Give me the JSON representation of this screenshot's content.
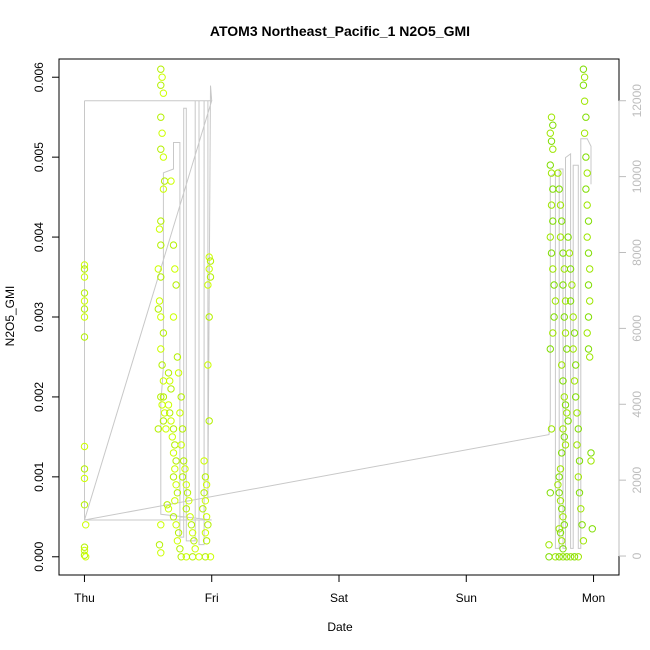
{
  "chart_data": {
    "type": "scatter",
    "title": "ATOM3 Northeast_Pacific_1 N2O5_GMI",
    "xlabel": "Date",
    "ylabel": "N2O5_GMI",
    "x_ticks": [
      "Thu",
      "Fri",
      "Sat",
      "Sun",
      "Mon"
    ],
    "x_tick_values": [
      0,
      1,
      2,
      3,
      4
    ],
    "xlim": [
      -0.2,
      4.2
    ],
    "ylim": [
      -0.000228,
      0.006228
    ],
    "y_ticks": [
      0.0,
      0.001,
      0.002,
      0.003,
      0.004,
      0.005,
      0.006
    ],
    "y_tick_labels": [
      "0.000",
      "0.001",
      "0.002",
      "0.003",
      "0.004",
      "0.005",
      "0.006"
    ],
    "y2_ticks": [
      0,
      2000,
      4000,
      6000,
      8000,
      10000,
      12000
    ],
    "y2_tick_labels": [
      "0",
      "2000",
      "4000",
      "6000",
      "8000",
      "10000",
      "12000"
    ],
    "y2lim": [
      -500,
      13100
    ],
    "grid": false,
    "marker_colors": [
      "#ccff00",
      "#b4f000",
      "#9ee600",
      "#7fdd00"
    ],
    "altitude_color": "#c8c8c8",
    "series": [
      {
        "values": [
          [
            0.0,
            0.00365
          ],
          [
            0.0,
            0.0036
          ],
          [
            0.0,
            0.0035
          ],
          [
            0.0,
            0.0033
          ],
          [
            0.0,
            0.0032
          ],
          [
            0.0,
            0.0031
          ],
          [
            0.0,
            0.003
          ],
          [
            0.0,
            0.00275
          ],
          [
            0.0,
            0.00138
          ],
          [
            0.0,
            0.0011
          ],
          [
            0.0,
            0.00098
          ],
          [
            0.0,
            0.00065
          ],
          [
            0.01,
            0.0004
          ],
          [
            0.0,
            0.00012
          ],
          [
            0.0,
            8e-05
          ],
          [
            0.0,
            2e-05
          ],
          [
            0.01,
            0.0
          ],
          [
            0.6,
            0.0061
          ],
          [
            0.61,
            0.006
          ],
          [
            0.6,
            0.0059
          ],
          [
            0.62,
            0.0058
          ],
          [
            0.6,
            0.0055
          ],
          [
            0.61,
            0.0053
          ],
          [
            0.6,
            0.0051
          ],
          [
            0.62,
            0.005
          ],
          [
            0.63,
            0.0047
          ],
          [
            0.62,
            0.0046
          ],
          [
            0.6,
            0.0042
          ],
          [
            0.59,
            0.0041
          ],
          [
            0.6,
            0.0039
          ],
          [
            0.58,
            0.0036
          ],
          [
            0.6,
            0.0035
          ],
          [
            0.59,
            0.0032
          ],
          [
            0.58,
            0.0031
          ],
          [
            0.6,
            0.003
          ],
          [
            0.62,
            0.0028
          ],
          [
            0.6,
            0.0026
          ],
          [
            0.61,
            0.0024
          ],
          [
            0.62,
            0.0022
          ],
          [
            0.6,
            0.002
          ],
          [
            0.61,
            0.0019
          ],
          [
            0.62,
            0.002
          ],
          [
            0.63,
            0.0018
          ],
          [
            0.62,
            0.0017
          ],
          [
            0.64,
            0.0016
          ],
          [
            0.58,
            0.0016
          ],
          [
            0.6,
            0.0004
          ],
          [
            0.59,
            0.00015
          ],
          [
            0.6,
            5e-05
          ],
          [
            0.66,
            0.0023
          ],
          [
            0.67,
            0.0022
          ],
          [
            0.68,
            0.0021
          ],
          [
            0.66,
            0.0019
          ],
          [
            0.67,
            0.0018
          ],
          [
            0.68,
            0.0017
          ],
          [
            0.7,
            0.0016
          ],
          [
            0.69,
            0.0015
          ],
          [
            0.71,
            0.0014
          ],
          [
            0.7,
            0.0013
          ],
          [
            0.72,
            0.0012
          ],
          [
            0.71,
            0.0011
          ],
          [
            0.7,
            0.001
          ],
          [
            0.72,
            0.0009
          ],
          [
            0.73,
            0.0008
          ],
          [
            0.71,
            0.0007
          ],
          [
            0.65,
            0.00065
          ],
          [
            0.66,
            0.0006
          ],
          [
            0.7,
            0.0005
          ],
          [
            0.72,
            0.0004
          ],
          [
            0.74,
            0.0003
          ],
          [
            0.73,
            0.0002
          ],
          [
            0.75,
            0.0001
          ],
          [
            0.68,
            0.0047
          ],
          [
            0.7,
            0.0039
          ],
          [
            0.71,
            0.0036
          ],
          [
            0.72,
            0.0034
          ],
          [
            0.7,
            0.003
          ],
          [
            0.73,
            0.0025
          ],
          [
            0.74,
            0.0023
          ],
          [
            0.76,
            0.002
          ],
          [
            0.75,
            0.0018
          ],
          [
            0.77,
            0.0016
          ],
          [
            0.76,
            0.0014
          ],
          [
            0.78,
            0.0012
          ],
          [
            0.79,
            0.0011
          ],
          [
            0.77,
            0.001
          ],
          [
            0.8,
            0.0009
          ],
          [
            0.81,
            0.0008
          ],
          [
            0.82,
            0.0007
          ],
          [
            0.8,
            0.0006
          ],
          [
            0.83,
            0.0005
          ],
          [
            0.84,
            0.0004
          ],
          [
            0.85,
            0.0003
          ],
          [
            0.86,
            0.0002
          ],
          [
            0.87,
            0.0001
          ],
          [
            0.76,
            0.0
          ],
          [
            0.8,
            0.0
          ],
          [
            0.85,
            0.0
          ],
          [
            0.9,
            0.0
          ],
          [
            0.95,
            0.0
          ],
          [
            0.94,
            0.0012
          ],
          [
            0.95,
            0.001
          ],
          [
            0.96,
            0.0009
          ],
          [
            0.94,
            0.0008
          ],
          [
            0.95,
            0.0007
          ],
          [
            0.93,
            0.0006
          ],
          [
            0.96,
            0.0005
          ],
          [
            0.97,
            0.0004
          ],
          [
            0.95,
            0.0003
          ],
          [
            0.96,
            0.0002
          ],
          [
            0.98,
            0.00375
          ],
          [
            0.99,
            0.0037
          ],
          [
            0.98,
            0.0036
          ],
          [
            0.99,
            0.0035
          ],
          [
            0.97,
            0.0034
          ],
          [
            0.98,
            0.003
          ],
          [
            0.97,
            0.0024
          ],
          [
            0.98,
            0.0017
          ],
          [
            0.99,
            0.0
          ]
        ]
      },
      {
        "values": [
          [
            3.67,
            0.0055
          ],
          [
            3.68,
            0.0054
          ],
          [
            3.66,
            0.0053
          ],
          [
            3.67,
            0.0052
          ],
          [
            3.68,
            0.0051
          ],
          [
            3.66,
            0.0049
          ],
          [
            3.67,
            0.0048
          ],
          [
            3.68,
            0.0046
          ],
          [
            3.67,
            0.0044
          ],
          [
            3.68,
            0.0042
          ],
          [
            3.66,
            0.004
          ],
          [
            3.67,
            0.0038
          ],
          [
            3.68,
            0.0036
          ],
          [
            3.69,
            0.0034
          ],
          [
            3.7,
            0.0032
          ],
          [
            3.69,
            0.003
          ],
          [
            3.68,
            0.0028
          ],
          [
            3.66,
            0.0026
          ],
          [
            3.67,
            0.0016
          ],
          [
            3.66,
            0.0008
          ],
          [
            3.65,
            0.00015
          ],
          [
            3.65,
            0.0
          ],
          [
            3.72,
            0.0048
          ],
          [
            3.73,
            0.0046
          ],
          [
            3.74,
            0.0044
          ],
          [
            3.75,
            0.0042
          ],
          [
            3.74,
            0.004
          ],
          [
            3.76,
            0.0038
          ],
          [
            3.77,
            0.0036
          ],
          [
            3.76,
            0.0034
          ],
          [
            3.78,
            0.0032
          ],
          [
            3.77,
            0.003
          ],
          [
            3.78,
            0.0028
          ],
          [
            3.79,
            0.0026
          ],
          [
            3.75,
            0.0024
          ],
          [
            3.76,
            0.0022
          ],
          [
            3.77,
            0.002
          ],
          [
            3.78,
            0.0019
          ],
          [
            3.79,
            0.0018
          ],
          [
            3.8,
            0.0017
          ],
          [
            3.76,
            0.0016
          ],
          [
            3.77,
            0.0015
          ],
          [
            3.78,
            0.0014
          ],
          [
            3.75,
            0.0013
          ],
          [
            3.74,
            0.0011
          ],
          [
            3.73,
            0.001
          ],
          [
            3.72,
            0.0009
          ],
          [
            3.73,
            0.0008
          ],
          [
            3.74,
            0.0007
          ],
          [
            3.75,
            0.0006
          ],
          [
            3.76,
            0.0005
          ],
          [
            3.77,
            0.0004
          ],
          [
            3.73,
            0.00035
          ],
          [
            3.74,
            0.0003
          ],
          [
            3.75,
            0.0002
          ],
          [
            3.76,
            0.0001
          ],
          [
            3.7,
            0.0
          ],
          [
            3.73,
            0.0
          ],
          [
            3.76,
            0.0
          ],
          [
            3.79,
            0.0
          ],
          [
            3.82,
            0.0
          ],
          [
            3.85,
            0.0
          ],
          [
            3.88,
            0.0
          ],
          [
            3.8,
            0.004
          ],
          [
            3.81,
            0.0038
          ],
          [
            3.82,
            0.0036
          ],
          [
            3.83,
            0.0034
          ],
          [
            3.82,
            0.0032
          ],
          [
            3.84,
            0.003
          ],
          [
            3.85,
            0.0028
          ],
          [
            3.84,
            0.0026
          ],
          [
            3.86,
            0.0024
          ],
          [
            3.85,
            0.0022
          ],
          [
            3.86,
            0.002
          ],
          [
            3.87,
            0.0018
          ],
          [
            3.88,
            0.0016
          ],
          [
            3.87,
            0.0014
          ],
          [
            3.89,
            0.0012
          ],
          [
            3.88,
            0.001
          ],
          [
            3.89,
            0.0008
          ],
          [
            3.9,
            0.0006
          ],
          [
            3.91,
            0.0004
          ],
          [
            3.92,
            0.0002
          ],
          [
            3.92,
            0.0061
          ],
          [
            3.93,
            0.006
          ],
          [
            3.92,
            0.0059
          ],
          [
            3.93,
            0.0057
          ],
          [
            3.94,
            0.0055
          ],
          [
            3.93,
            0.0053
          ],
          [
            3.94,
            0.005
          ],
          [
            3.95,
            0.0048
          ],
          [
            3.94,
            0.0046
          ],
          [
            3.95,
            0.0044
          ],
          [
            3.96,
            0.0042
          ],
          [
            3.95,
            0.004
          ],
          [
            3.96,
            0.0038
          ],
          [
            3.97,
            0.0036
          ],
          [
            3.96,
            0.0034
          ],
          [
            3.97,
            0.0032
          ],
          [
            3.96,
            0.003
          ],
          [
            3.95,
            0.0028
          ],
          [
            3.96,
            0.0026
          ],
          [
            3.97,
            0.0025
          ],
          [
            3.98,
            0.0013
          ],
          [
            3.98,
            0.0012
          ],
          [
            3.99,
            0.00035
          ]
        ]
      }
    ],
    "altitude_series": {
      "values": [
        [
          0.0,
          12000
        ],
        [
          0.0,
          950
        ],
        [
          1.0,
          950
        ],
        [
          0.6,
          1100
        ],
        [
          0.6,
          4000
        ],
        [
          0.62,
          5000
        ],
        [
          0.62,
          10100
        ],
        [
          0.7,
          10200
        ],
        [
          0.7,
          10900
        ],
        [
          0.75,
          10900
        ],
        [
          0.75,
          500
        ],
        [
          0.78,
          500
        ],
        [
          0.78,
          11800
        ],
        [
          0.8,
          11800
        ],
        [
          0.8,
          400
        ],
        [
          0.87,
          400
        ],
        [
          0.87,
          12000
        ],
        [
          0.9,
          12000
        ],
        [
          0.9,
          300
        ],
        [
          0.94,
          300
        ],
        [
          0.94,
          12000
        ],
        [
          0.97,
          12000
        ],
        [
          0.97,
          1500
        ],
        [
          0.99,
          12400
        ],
        [
          1.0,
          12000
        ],
        [
          0.0,
          12000
        ],
        [
          1.0,
          12000
        ],
        [
          0.0,
          950
        ],
        [
          3.65,
          3200
        ],
        [
          3.66,
          3600
        ],
        [
          3.66,
          10000
        ],
        [
          3.7,
          10100
        ],
        [
          3.7,
          200
        ],
        [
          3.73,
          200
        ],
        [
          3.73,
          10200
        ],
        [
          3.76,
          10200
        ],
        [
          3.76,
          200
        ],
        [
          3.78,
          200
        ],
        [
          3.78,
          10500
        ],
        [
          3.82,
          10600
        ],
        [
          3.82,
          200
        ],
        [
          3.84,
          200
        ],
        [
          3.84,
          10300
        ],
        [
          3.88,
          10300
        ],
        [
          3.88,
          200
        ],
        [
          3.9,
          200
        ],
        [
          3.9,
          11000
        ],
        [
          3.95,
          11000
        ],
        [
          3.98,
          10800
        ],
        [
          3.98,
          9800
        ]
      ]
    }
  }
}
